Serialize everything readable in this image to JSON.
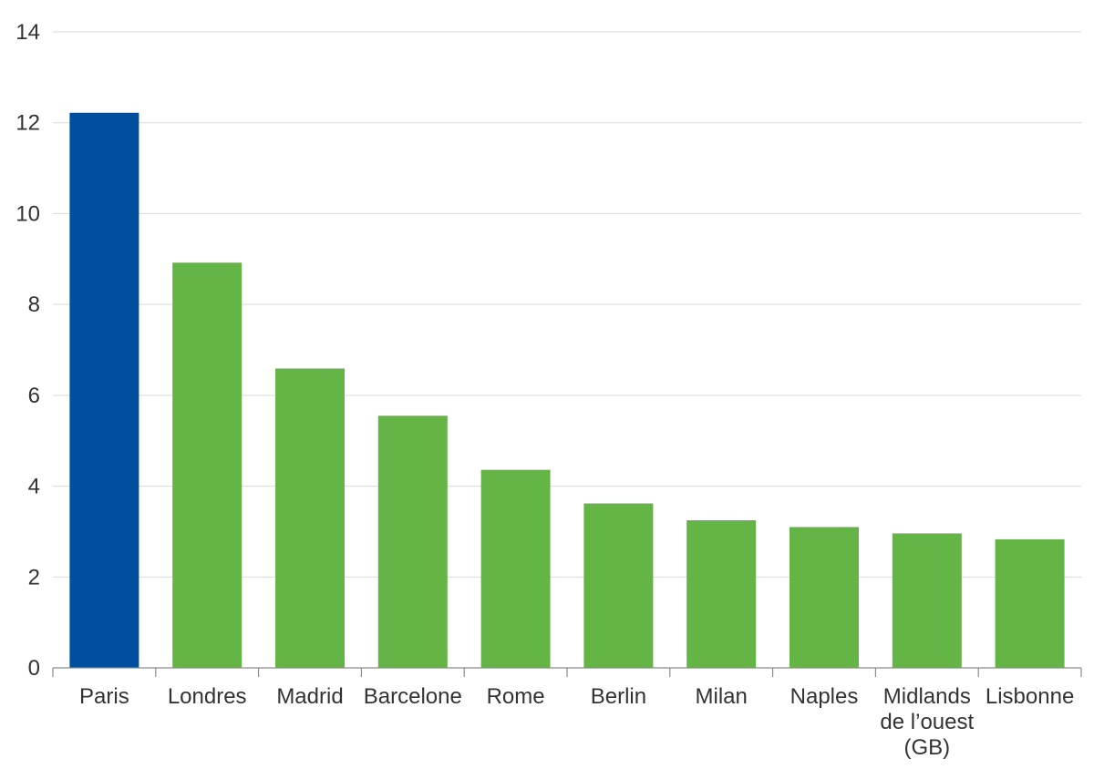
{
  "chart_data": {
    "type": "bar",
    "title": "",
    "xlabel": "",
    "ylabel": "",
    "ylim": [
      0,
      14
    ],
    "yticks": [
      "0",
      "2",
      "4",
      "6",
      "8",
      "10",
      "12",
      "14"
    ],
    "categories": [
      "Paris",
      "Londres",
      "Madrid",
      "Barcelone",
      "Rome",
      "Berlin",
      "Milan",
      "Naples",
      "Midlands de l’ouest (GB)",
      "Lisbonne"
    ],
    "category_label_lines": [
      [
        "Paris"
      ],
      [
        "Londres"
      ],
      [
        "Madrid"
      ],
      [
        "Barcelone"
      ],
      [
        "Rome"
      ],
      [
        "Berlin"
      ],
      [
        "Milan"
      ],
      [
        "Naples"
      ],
      [
        "Midlands",
        "de l’ouest",
        "(GB)"
      ],
      [
        "Lisbonne"
      ]
    ],
    "values": [
      12.22,
      8.92,
      6.59,
      5.55,
      4.36,
      3.62,
      3.25,
      3.1,
      2.96,
      2.83
    ],
    "bar_colors": [
      "#004f9e",
      "#64b446",
      "#64b446",
      "#64b446",
      "#64b446",
      "#64b446",
      "#64b446",
      "#64b446",
      "#64b446",
      "#64b446"
    ],
    "grid": true,
    "legend": "none"
  }
}
